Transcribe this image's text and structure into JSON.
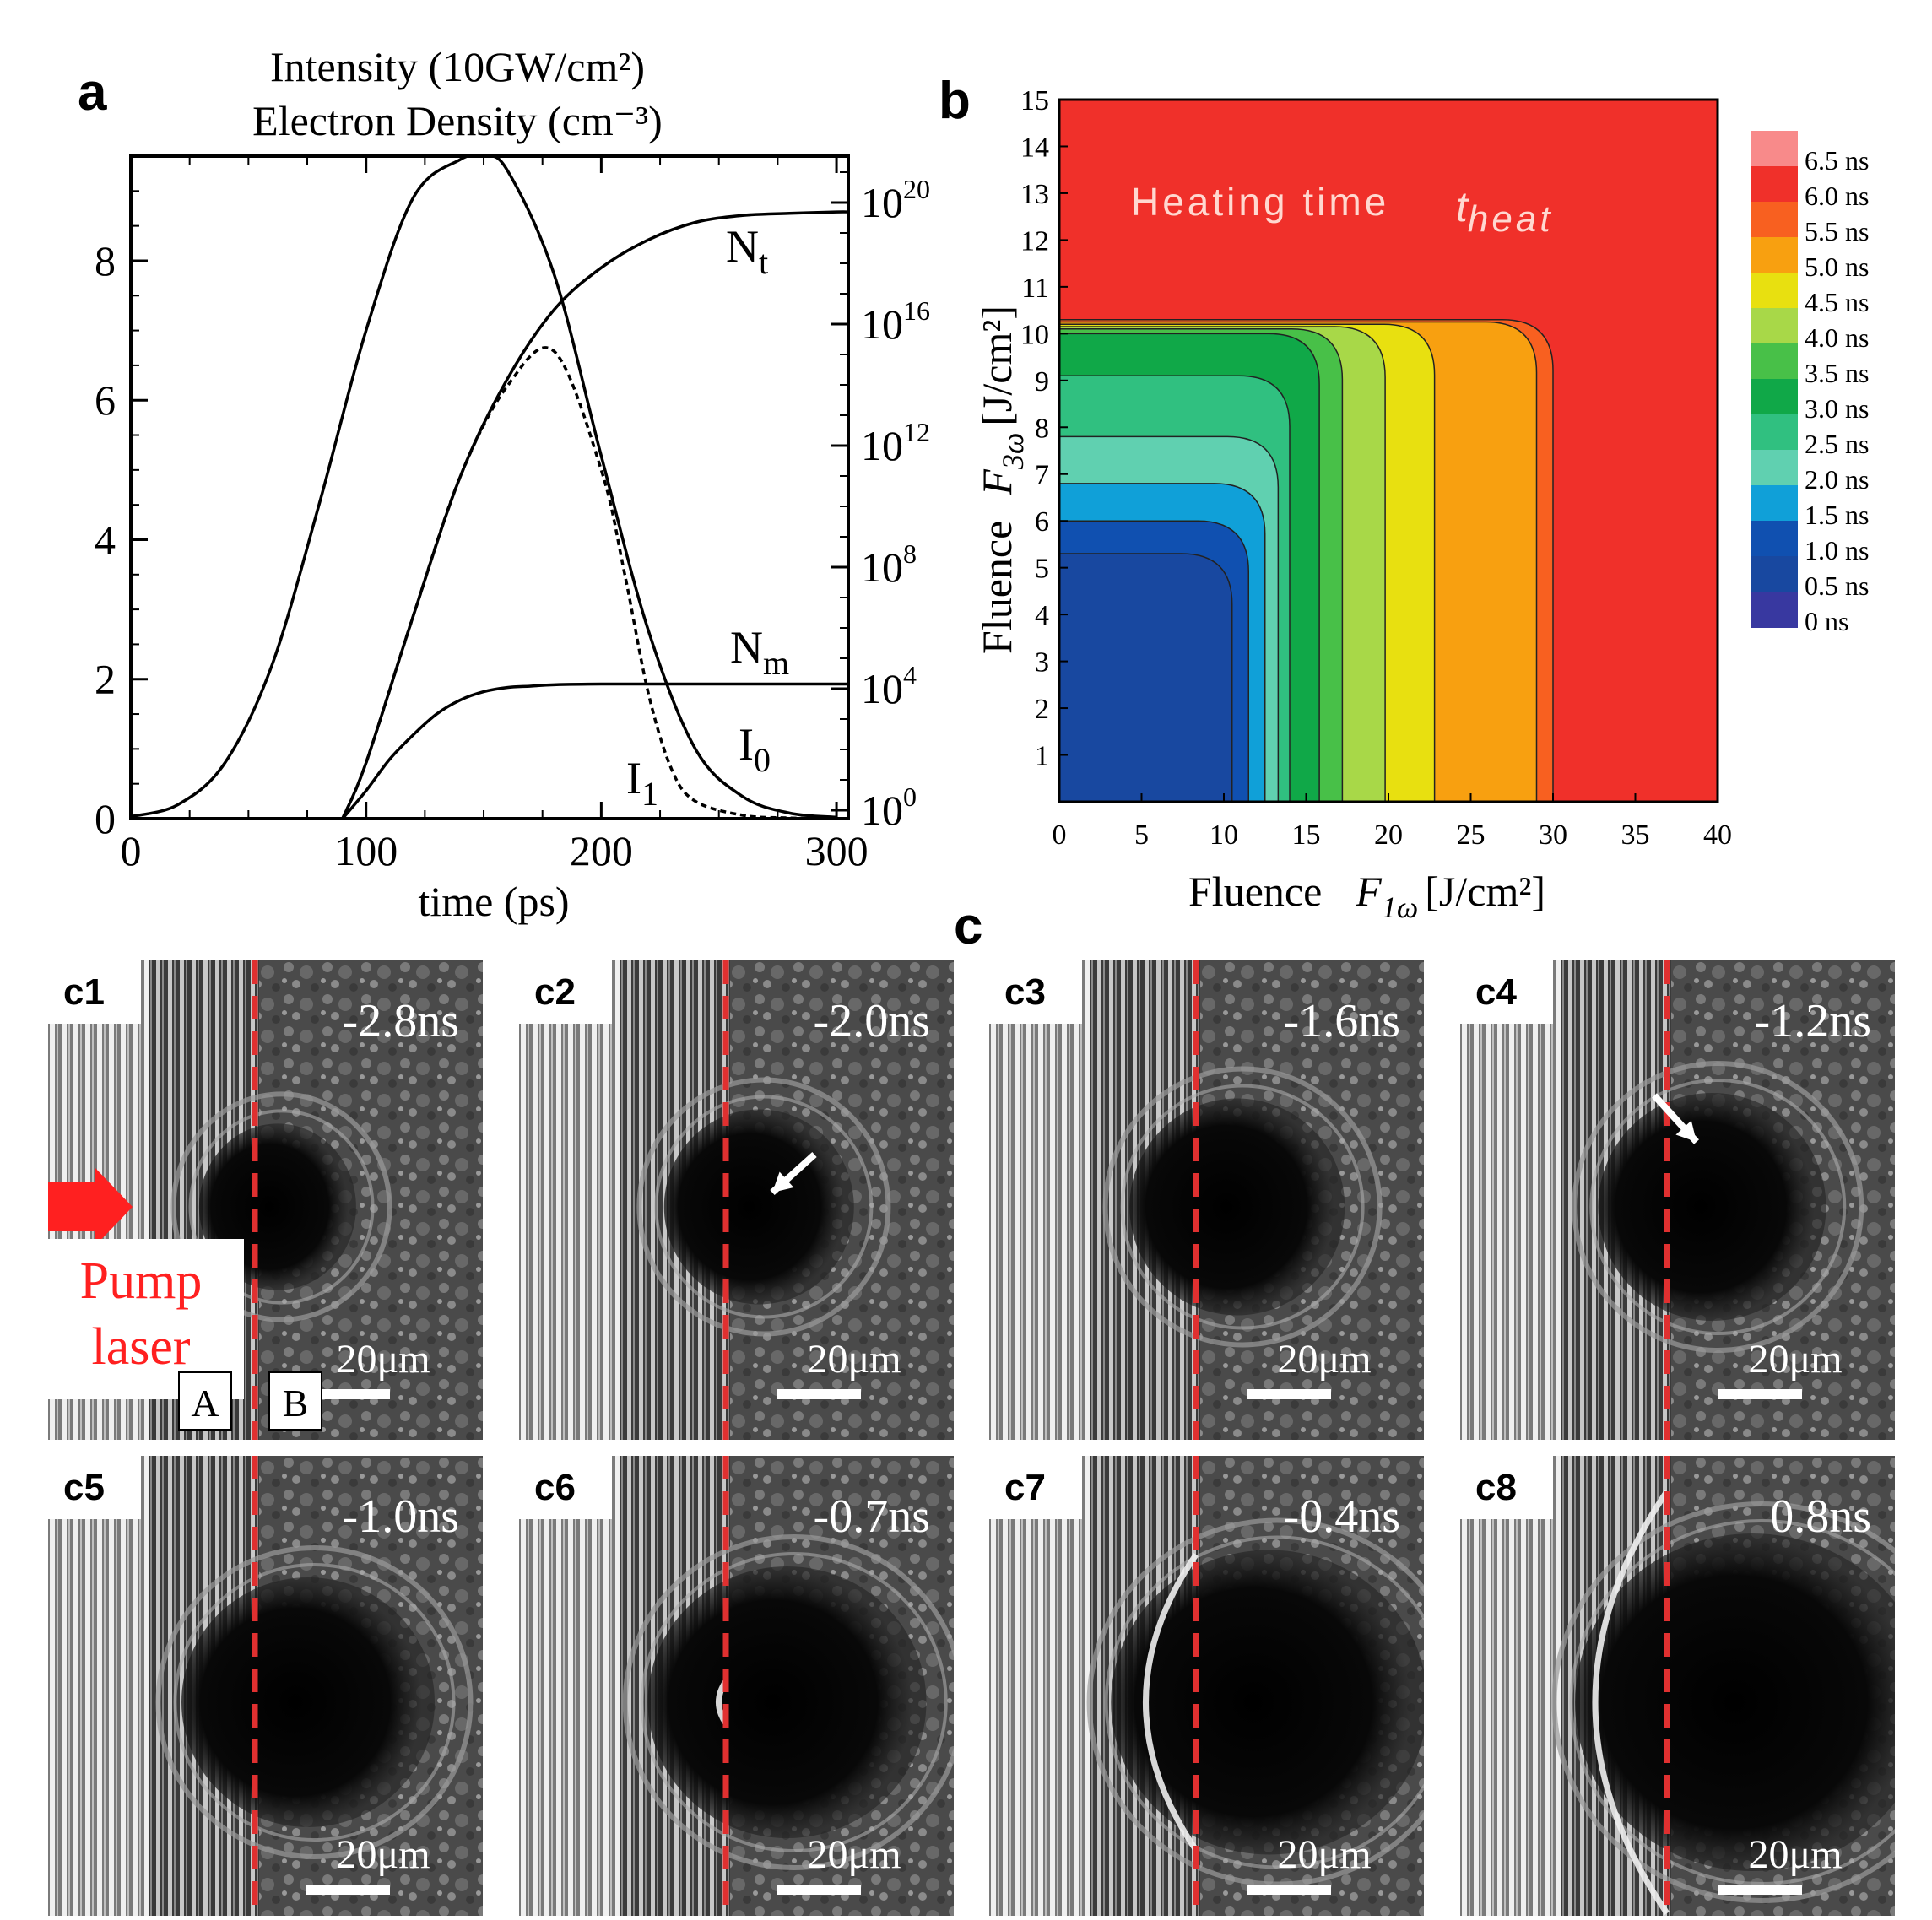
{
  "panel_labels": {
    "a": "a",
    "b": "b",
    "c": "c"
  },
  "chart_data": [
    {
      "panel": "a",
      "type": "line",
      "title_line1": "Intensity (10GW/cm²)",
      "title_line2": "Electron Density (cm⁻³)",
      "xlabel": "time (ps)",
      "xlim": [
        0,
        305
      ],
      "ylim": [
        0,
        9.5
      ],
      "x_ticks": [
        "0",
        "100",
        "200",
        "300"
      ],
      "y_ticks": [
        "0",
        "2",
        "4",
        "6",
        "8"
      ],
      "right_axis_ticks": [
        {
          "base": "10",
          "exp": "0"
        },
        {
          "base": "10",
          "exp": "4"
        },
        {
          "base": "10",
          "exp": "8"
        },
        {
          "base": "10",
          "exp": "12"
        },
        {
          "base": "10",
          "exp": "16"
        },
        {
          "base": "10",
          "exp": "20"
        }
      ],
      "series": [
        {
          "name": "I₀",
          "label_main": "I",
          "label_sub": "0",
          "style": "solid",
          "x": [
            0,
            20,
            40,
            60,
            80,
            100,
            120,
            140,
            150,
            160,
            180,
            200,
            220,
            240,
            260,
            280,
            300
          ],
          "y": [
            0.03,
            0.2,
            0.8,
            2.2,
            4.5,
            7.0,
            8.9,
            9.45,
            9.5,
            9.3,
            7.8,
            5.2,
            2.7,
            1.0,
            0.32,
            0.08,
            0.02
          ]
        },
        {
          "name": "I₁",
          "label_main": "I",
          "label_sub": "1",
          "style": "dashed",
          "x": [
            90,
            100,
            120,
            140,
            160,
            180,
            200,
            210,
            220,
            230,
            240,
            260,
            280,
            300
          ],
          "y": [
            0.0,
            0.8,
            2.9,
            4.9,
            6.2,
            6.7,
            5.0,
            3.5,
            1.8,
            0.7,
            0.25,
            0.05,
            0.01,
            0.0
          ]
        },
        {
          "name": "Nt",
          "label_main": "N",
          "label_sub": "t",
          "style": "solid",
          "x": [
            90,
            100,
            120,
            140,
            160,
            180,
            200,
            220,
            240,
            260,
            280,
            300,
            305
          ],
          "y": [
            0.0,
            0.8,
            2.9,
            4.9,
            6.3,
            7.3,
            7.9,
            8.3,
            8.55,
            8.65,
            8.68,
            8.7,
            8.7
          ]
        },
        {
          "name": "Nm",
          "label_main": "N",
          "label_sub": "m",
          "style": "solid",
          "x": [
            90,
            100,
            110,
            120,
            130,
            140,
            150,
            160,
            170,
            180,
            200,
            240,
            305
          ],
          "y": [
            0.0,
            0.4,
            0.85,
            1.2,
            1.5,
            1.7,
            1.82,
            1.88,
            1.9,
            1.92,
            1.93,
            1.93,
            1.93
          ]
        }
      ]
    },
    {
      "panel": "b",
      "type": "heatmap",
      "annotation": "Heating time",
      "annotation_symbol_main": "t",
      "annotation_symbol_sub": "heat",
      "xlabel_word": "Fluence",
      "xlabel_symbol_main": "F",
      "xlabel_symbol_sub": "1ω",
      "xlabel_unit": "[J/cm²]",
      "ylabel_word": "Fluence",
      "ylabel_symbol_main": "F",
      "ylabel_symbol_sub": "3ω",
      "ylabel_unit": "[J/cm²]",
      "xlim": [
        0,
        40
      ],
      "ylim": [
        0,
        15
      ],
      "x_ticks": [
        "0",
        "5",
        "10",
        "15",
        "20",
        "25",
        "30",
        "35",
        "40"
      ],
      "y_ticks": [
        "1",
        "2",
        "3",
        "4",
        "5",
        "6",
        "7",
        "8",
        "9",
        "10",
        "11",
        "12",
        "13",
        "14",
        "15"
      ],
      "legend_labels": [
        "6.5 ns",
        "6.0 ns",
        "5.5 ns",
        "5.0 ns",
        "4.5 ns",
        "4.0 ns",
        "3.5 ns",
        "3.0 ns",
        "2.5 ns",
        "2.0 ns",
        "1.5 ns",
        "1.0 ns",
        "0.5 ns",
        "0 ns"
      ],
      "legend_colors": [
        "#f88a8a",
        "#f0302a",
        "#f86020",
        "#f8a010",
        "#e8e010",
        "#a8d848",
        "#48c048",
        "#10a848",
        "#30c080",
        "#60d0b0",
        "#10a0d8",
        "#1050b0",
        "#1848a0",
        "#3838a0"
      ],
      "contour_levels": [
        {
          "time": "0.5 ns",
          "x_edge": 10.5,
          "y_edge": 5.3,
          "color": "#1848a0"
        },
        {
          "time": "1.0 ns",
          "x_edge": 11.5,
          "y_edge": 6.0,
          "color": "#1050b0"
        },
        {
          "time": "1.5 ns",
          "x_edge": 12.5,
          "y_edge": 6.8,
          "color": "#10a0d8"
        },
        {
          "time": "2.0 ns",
          "x_edge": 13.3,
          "y_edge": 7.8,
          "color": "#60d0b0"
        },
        {
          "time": "2.5 ns",
          "x_edge": 14.0,
          "y_edge": 9.1,
          "color": "#30c080"
        },
        {
          "time": "3.0 ns",
          "x_edge": 15.8,
          "y_edge": 10.0,
          "color": "#10a848"
        },
        {
          "time": "3.5 ns",
          "x_edge": 17.2,
          "y_edge": 10.1,
          "color": "#48c048"
        },
        {
          "time": "4.0 ns",
          "x_edge": 19.8,
          "y_edge": 10.15,
          "color": "#a8d848"
        },
        {
          "time": "4.5 ns",
          "x_edge": 22.8,
          "y_edge": 10.2,
          "color": "#e8e010"
        },
        {
          "time": "5.0 ns",
          "x_edge": 29.0,
          "y_edge": 10.25,
          "color": "#f8a010"
        },
        {
          "time": "5.5 ns",
          "x_edge": 30.0,
          "y_edge": 10.3,
          "color": "#f86020"
        }
      ],
      "background_color": "#f0302a"
    }
  ],
  "frames": [
    {
      "id": "c1",
      "time": "-2.8ns",
      "scale": "20μm",
      "arrow": false,
      "bubble": 0.22,
      "shock": 0
    },
    {
      "id": "c2",
      "time": "-2.0ns",
      "scale": "20μm",
      "arrow": true,
      "bubble": 0.35,
      "shock": 0
    },
    {
      "id": "c3",
      "time": "-1.6ns",
      "scale": "20μm",
      "arrow": false,
      "bubble": 0.45,
      "shock": 0
    },
    {
      "id": "c4",
      "time": "-1.2ns",
      "scale": "20μm",
      "arrow": true,
      "bubble": 0.5,
      "shock": 0
    },
    {
      "id": "c5",
      "time": "-1.0ns",
      "scale": "20μm",
      "arrow": false,
      "bubble": 0.6,
      "shock": 0
    },
    {
      "id": "c6",
      "time": "-0.7ns",
      "scale": "20μm",
      "arrow": false,
      "bubble": 0.7,
      "shock": 0.1
    },
    {
      "id": "c7",
      "time": "-0.4ns",
      "scale": "20μm",
      "arrow": false,
      "bubble": 0.85,
      "shock": 0.7
    },
    {
      "id": "c8",
      "time": "0.8ns",
      "scale": "20μm",
      "arrow": false,
      "bubble": 1.0,
      "shock": 1.0
    }
  ],
  "c1_extras": {
    "pump_line1": "Pump",
    "pump_line2": "laser",
    "region_a": "A",
    "region_b": "B"
  }
}
